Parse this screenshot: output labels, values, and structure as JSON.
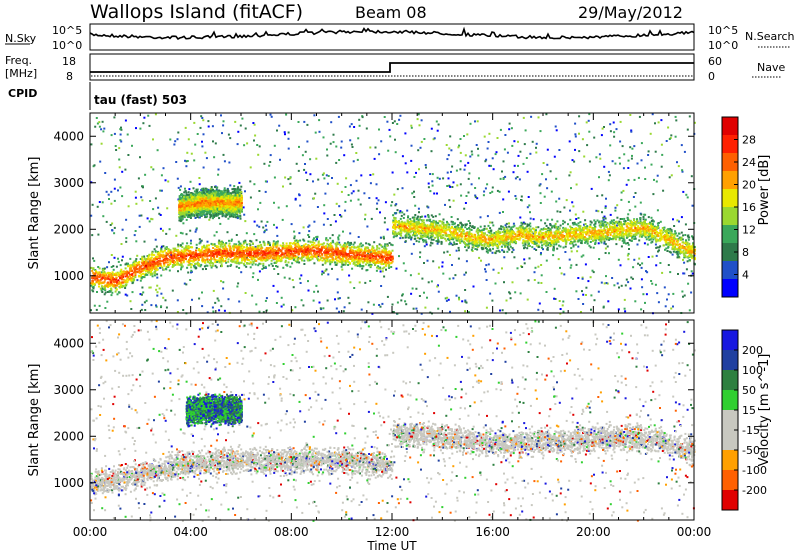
{
  "header": {
    "site": "Wallops Island (fitACF)",
    "beam": "Beam 08",
    "date": "29/May/2012"
  },
  "status_panels": {
    "nsky_label": "N.Sky",
    "nsky_ticks": [
      "10^5",
      "10^0"
    ],
    "nsearch_label": "N.Search",
    "nsearch_ticks": [
      "10^5",
      "10^0"
    ],
    "freq_label_1": "Freq.",
    "freq_label_2": "[MHz]",
    "freq_ticks": [
      "18",
      "8"
    ],
    "nave_label": "Nave",
    "nave_ticks": [
      "60",
      "0"
    ],
    "cpid_label": "CPID",
    "cpid_text": "tau (fast) 503"
  },
  "colors": {
    "power_scale": [
      "#0000ff",
      "#2050c8",
      "#2e7a4a",
      "#3aa85a",
      "#9ad830",
      "#e8e800",
      "#ffa000",
      "#ff6000",
      "#ff2000",
      "#e00000"
    ],
    "velocity_scale": [
      "#e00000",
      "#ff6000",
      "#ffa000",
      "#c8c8c0",
      "#c8c8c0",
      "#30d030",
      "#2e8040",
      "#2040a0",
      "#1818e0"
    ]
  },
  "chart_data": [
    {
      "type": "heatmap",
      "panel": "power",
      "ylabel": "Slant Range [km]",
      "yticks": [
        "4000",
        "3000",
        "2000",
        "1000"
      ],
      "ylim": [
        200,
        4500
      ],
      "xticks": [
        "00:00",
        "04:00",
        "08:00",
        "12:00",
        "16:00",
        "20:00",
        "00:00"
      ],
      "xlim_hours": [
        0,
        24
      ],
      "colorbar": {
        "label": "Power [dB]",
        "ticks": [
          "28",
          "24",
          "20",
          "16",
          "12",
          "8",
          "4"
        ]
      },
      "bands": [
        {
          "x": [
            0,
            1,
            2,
            3,
            4,
            5,
            6,
            7,
            8,
            9,
            10,
            11,
            12
          ],
          "range": [
            1000,
            900,
            1200,
            1400,
            1450,
            1500,
            1500,
            1500,
            1550,
            1550,
            1500,
            1450,
            1400
          ],
          "peak_db": 26
        },
        {
          "x": [
            3.5,
            4.0,
            4.5,
            5.0,
            5.5,
            6.0
          ],
          "range": [
            2500,
            2550,
            2600,
            2600,
            2580,
            2600
          ],
          "peak_db": 22
        },
        {
          "x": [
            12,
            13,
            14,
            15,
            16,
            17,
            18,
            19,
            20,
            21,
            22,
            23,
            24
          ],
          "range": [
            2100,
            2050,
            2000,
            1850,
            1800,
            1900,
            1850,
            1900,
            1950,
            2000,
            2050,
            1800,
            1500
          ],
          "peak_db": 20
        }
      ]
    },
    {
      "type": "heatmap",
      "panel": "velocity",
      "ylabel": "Slant Range [km]",
      "yticks": [
        "4000",
        "3000",
        "2000",
        "1000"
      ],
      "ylim": [
        200,
        4500
      ],
      "xticks": [
        "00:00",
        "04:00",
        "08:00",
        "12:00",
        "16:00",
        "20:00",
        "00:00"
      ],
      "xlabel": "Time UT",
      "xlim_hours": [
        0,
        24
      ],
      "colorbar": {
        "label": "Velocity [m s^-1]",
        "ticks": [
          "200",
          "100",
          "50",
          "15",
          "-15",
          "-50",
          "-100",
          "-200"
        ]
      },
      "bands": [
        {
          "x": [
            0,
            2,
            4,
            6,
            8,
            10,
            12
          ],
          "range": [
            1000,
            1200,
            1450,
            1500,
            1500,
            1500,
            1400
          ],
          "velocity": 0
        },
        {
          "x": [
            3.8,
            4.5,
            5.2,
            6.0
          ],
          "range": [
            2550,
            2600,
            2600,
            2580
          ],
          "velocity": 150
        },
        {
          "x": [
            12,
            14,
            16,
            18,
            20,
            22,
            24
          ],
          "range": [
            2100,
            2000,
            1850,
            1900,
            1950,
            2000,
            1700
          ],
          "velocity": 0
        }
      ]
    }
  ]
}
